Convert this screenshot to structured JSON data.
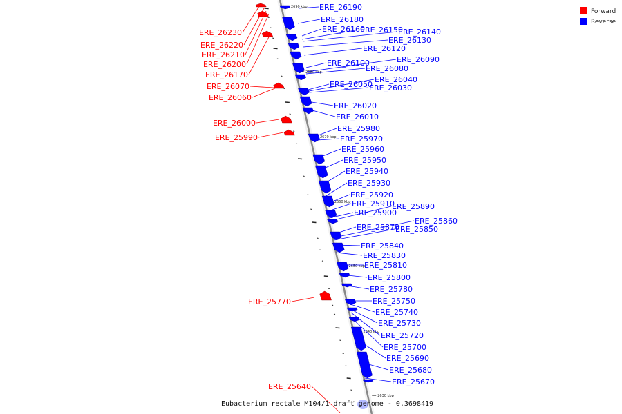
{
  "caption": "Eubacterium rectale M104/1 draft genome - 0.3698419",
  "legend": [
    {
      "label": "Forward",
      "color": "#ff0000"
    },
    {
      "label": "Reverse",
      "color": "#0000ff"
    }
  ],
  "colors": {
    "forward": "#ff0000",
    "reverse": "#0000ff",
    "backbone": "#888888"
  },
  "kbp_ticks": [
    "2690 kbp",
    "2680 kbp",
    "2670 kbp",
    "2660 kbp",
    "2650 kbp",
    "2640 kbp",
    "2630 kbp"
  ],
  "forward_genes": [
    "ERE_26230",
    "ERE_26220",
    "ERE_26210",
    "ERE_26200",
    "ERE_26170",
    "ERE_26070",
    "ERE_26060",
    "ERE_26000",
    "ERE_25990",
    "ERE_25770",
    "ERE_25640"
  ],
  "reverse_genes": [
    "ERE_26190",
    "ERE_26180",
    "ERE_26160",
    "ERE_26150",
    "ERE_26140",
    "ERE_26130",
    "ERE_26120",
    "ERE_26100",
    "ERE_26090",
    "ERE_26080",
    "ERE_26050",
    "ERE_26040",
    "ERE_26030",
    "ERE_26020",
    "ERE_26010",
    "ERE_25980",
    "ERE_25970",
    "ERE_25960",
    "ERE_25950",
    "ERE_25940",
    "ERE_25930",
    "ERE_25920",
    "ERE_25910",
    "ERE_25900",
    "ERE_25890",
    "ERE_25870",
    "ERE_25860",
    "ERE_25850",
    "ERE_25840",
    "ERE_25830",
    "ERE_25810",
    "ERE_25800",
    "ERE_25780",
    "ERE_25750",
    "ERE_25740",
    "ERE_25730",
    "ERE_25720",
    "ERE_25700",
    "ERE_25690",
    "ERE_25680",
    "ERE_25670"
  ]
}
